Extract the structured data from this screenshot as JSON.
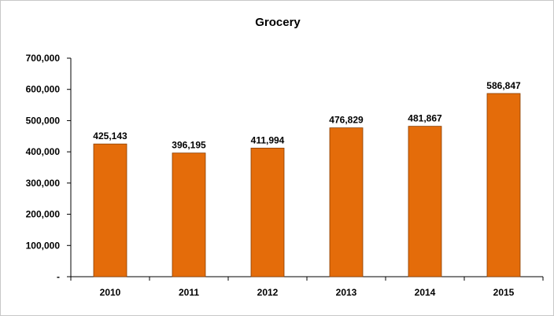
{
  "chart_data": {
    "type": "bar",
    "title": "Grocery",
    "xlabel": "",
    "ylabel": "",
    "categories": [
      "2010",
      "2011",
      "2012",
      "2013",
      "2014",
      "2015"
    ],
    "values": [
      425143,
      396195,
      411994,
      476829,
      481867,
      586847
    ],
    "data_labels": [
      "425,143",
      "396,195",
      "411,994",
      "476,829",
      "481,867",
      "586,847"
    ],
    "ylim": [
      0,
      700000
    ],
    "yticks": [
      0,
      100000,
      200000,
      300000,
      400000,
      500000,
      600000,
      700000
    ],
    "ytick_labels": [
      "-",
      "100,000",
      "200,000",
      "300,000",
      "400,000",
      "500,000",
      "600,000",
      "700,000"
    ],
    "grid": false,
    "legend": "none",
    "bar_color": "#e46c0a",
    "bar_edge_color": "#8a3e00"
  }
}
